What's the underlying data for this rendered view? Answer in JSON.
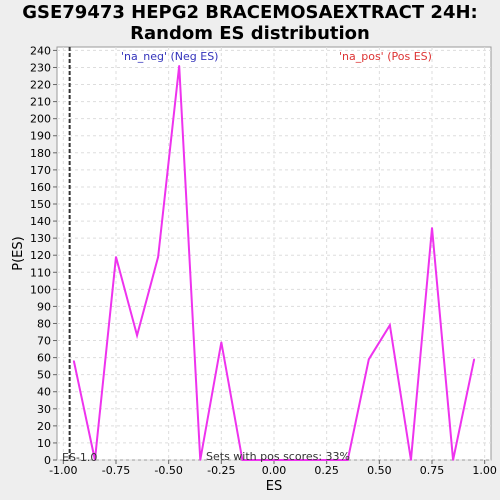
{
  "chart_data": {
    "type": "line",
    "title_line1": "GSE79473 HEPG2 BRACEMOSAEXTRACT 24H:",
    "title_line2": "Random ES distribution",
    "xlabel": "ES",
    "ylabel": "P(ES)",
    "xlim": [
      -1.03,
      1.03
    ],
    "ylim": [
      0,
      242
    ],
    "x_ticks": [
      -1.0,
      -0.75,
      -0.5,
      -0.25,
      0.0,
      0.25,
      0.5,
      0.75,
      1.0
    ],
    "x_tick_labels": [
      "-1.00",
      "-0.75",
      "-0.50",
      "-0.25",
      "0.00",
      "0.25",
      "0.50",
      "0.75",
      "1.00"
    ],
    "y_ticks": [
      0,
      10,
      20,
      30,
      40,
      50,
      60,
      70,
      80,
      90,
      100,
      110,
      120,
      130,
      140,
      150,
      160,
      170,
      180,
      190,
      200,
      210,
      220,
      230,
      240
    ],
    "grid": true,
    "series": [
      {
        "color": "#ee33ee",
        "x": [
          -0.95,
          -0.85,
          -0.75,
          -0.65,
          -0.55,
          -0.45,
          -0.35,
          -0.25,
          -0.15,
          -0.05,
          0.05,
          0.15,
          0.25,
          0.35,
          0.45,
          0.55,
          0.65,
          0.75,
          0.85,
          0.95
        ],
        "y": [
          58,
          0,
          119,
          73,
          119,
          231,
          0,
          69,
          0,
          0,
          0,
          0,
          0,
          0,
          59,
          79,
          0,
          136,
          0,
          59
        ]
      }
    ],
    "marker_line": {
      "x": -0.97,
      "style": "dashed",
      "color": "#333333"
    },
    "annotations": {
      "neg_label": "'na_neg' (Neg ES)",
      "neg_color": "#3333bb",
      "pos_label": "'na_pos' (Pos ES)",
      "pos_color": "#dd3333",
      "es_text": "ES-1.0",
      "sets_text": "Sets with pos scores: 33%"
    }
  }
}
